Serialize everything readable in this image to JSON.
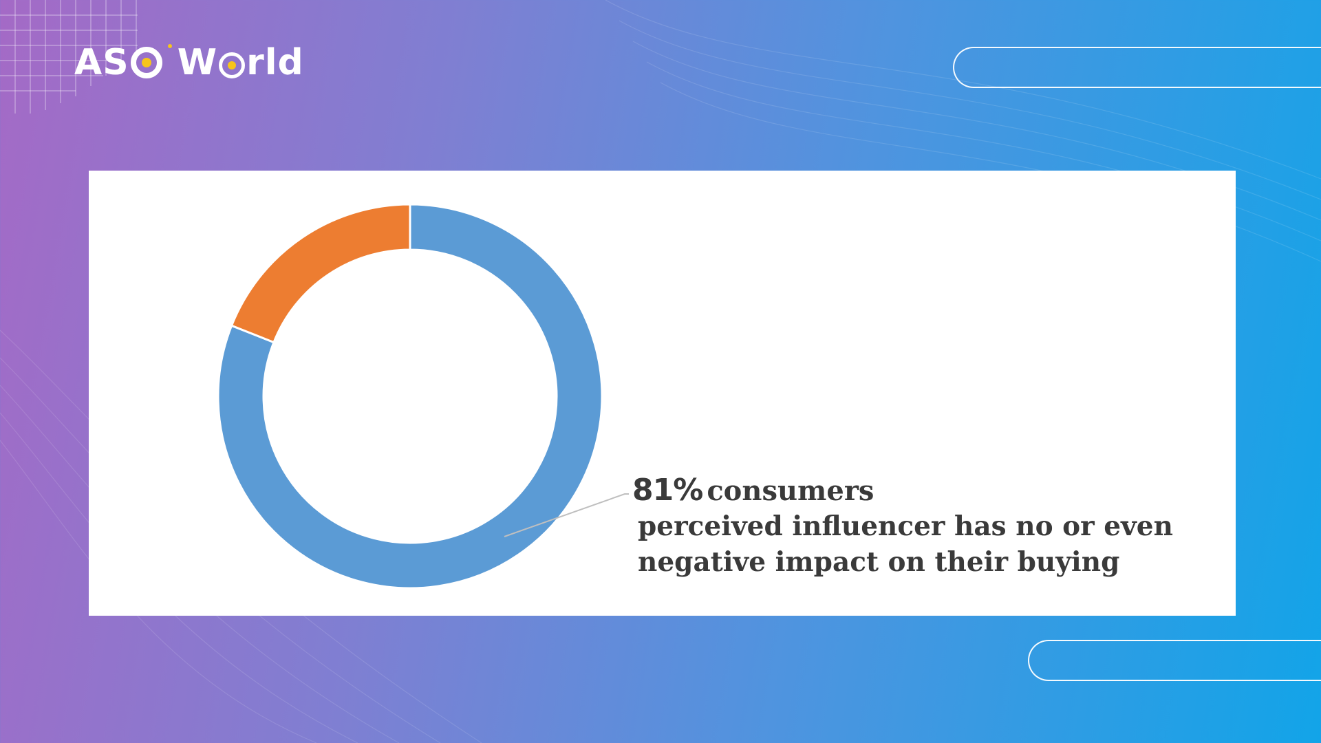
{
  "brand": {
    "logo_text_a": "AS",
    "logo_text_b": "W",
    "logo_text_c": "rld",
    "accent_color": "#f6c41b"
  },
  "chart_data": {
    "type": "pie",
    "variant": "donut",
    "slices": [
      {
        "value": 81,
        "color": "#5b9bd5"
      },
      {
        "value": 19,
        "color": "#ed7d31"
      }
    ],
    "annotation": {
      "percent": "81%",
      "line1": "consumers",
      "line2": "perceived influencer has no or even",
      "line3": "negative impact on their buying"
    },
    "legend": "none"
  }
}
